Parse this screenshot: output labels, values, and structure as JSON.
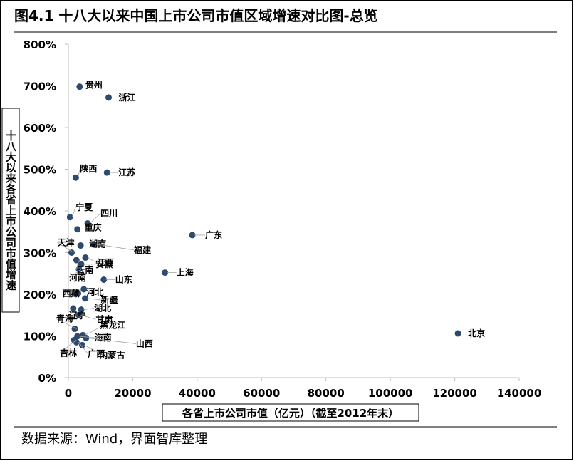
{
  "figure": {
    "title": "图4.1 十八大以来中国上市公司市值区域增速对比图-总览",
    "source": "数据来源：Wind，界面智库整理"
  },
  "chart_data": {
    "type": "scatter",
    "xlabel": "各省上市公司市值（亿元）（截至2012年末）",
    "ylabel": "十八大以来各省上市公司市值增速",
    "xlim": [
      0,
      140000
    ],
    "ylim": [
      0,
      8
    ],
    "x_ticks": [
      0,
      20000,
      40000,
      60000,
      80000,
      100000,
      120000,
      140000
    ],
    "x_tick_labels": [
      "0",
      "20000",
      "40000",
      "60000",
      "80000",
      "100000",
      "120000",
      "140000"
    ],
    "y_ticks": [
      0,
      1,
      2,
      3,
      4,
      5,
      6,
      7,
      8
    ],
    "y_tick_labels": [
      "0%",
      "100%",
      "200%",
      "300%",
      "400%",
      "500%",
      "600%",
      "700%",
      "800%"
    ],
    "marker_color": "#2e4a6e",
    "grid": false,
    "points": [
      {
        "label": "贵州",
        "x": 3500,
        "y": 6.98
      },
      {
        "label": "浙江",
        "x": 12500,
        "y": 6.72
      },
      {
        "label": "陕西",
        "x": 2300,
        "y": 4.8
      },
      {
        "label": "江苏",
        "x": 12000,
        "y": 4.92
      },
      {
        "label": "宁夏",
        "x": 500,
        "y": 3.85
      },
      {
        "label": "四川",
        "x": 6000,
        "y": 3.7
      },
      {
        "label": "重庆",
        "x": 2800,
        "y": 3.56
      },
      {
        "label": "天津",
        "x": 1000,
        "y": 3.0
      },
      {
        "label": "湖南",
        "x": 3800,
        "y": 3.17
      },
      {
        "label": "福建",
        "x": 8000,
        "y": 3.2
      },
      {
        "label": "江西",
        "x": 5300,
        "y": 2.88
      },
      {
        "label": "广东",
        "x": 38500,
        "y": 3.42
      },
      {
        "label": "云南",
        "x": 2500,
        "y": 2.82
      },
      {
        "label": "安徽",
        "x": 4000,
        "y": 2.72
      },
      {
        "label": "河南",
        "x": 3300,
        "y": 2.6
      },
      {
        "label": "上海",
        "x": 30000,
        "y": 2.52
      },
      {
        "label": "西藏",
        "x": 4800,
        "y": 2.12
      },
      {
        "label": "山东",
        "x": 11000,
        "y": 2.35
      },
      {
        "label": "河北",
        "x": 3000,
        "y": 2.02
      },
      {
        "label": "新疆",
        "x": 5200,
        "y": 1.9
      },
      {
        "label": "辽宁",
        "x": 1500,
        "y": 1.66
      },
      {
        "label": "湖北",
        "x": 4000,
        "y": 1.63
      },
      {
        "label": "甘肃",
        "x": 3200,
        "y": 1.5
      },
      {
        "label": "青海",
        "x": 2000,
        "y": 1.17
      },
      {
        "label": "黑龙江",
        "x": 4500,
        "y": 1.02
      },
      {
        "label": "海南",
        "x": 2800,
        "y": 0.99
      },
      {
        "label": "山西",
        "x": 5500,
        "y": 0.95
      },
      {
        "label": "吉林",
        "x": 1800,
        "y": 0.9
      },
      {
        "label": "广西",
        "x": 2500,
        "y": 0.85
      },
      {
        "label": "内蒙古",
        "x": 4300,
        "y": 0.78
      },
      {
        "label": "北京",
        "x": 121000,
        "y": 1.06
      }
    ]
  }
}
